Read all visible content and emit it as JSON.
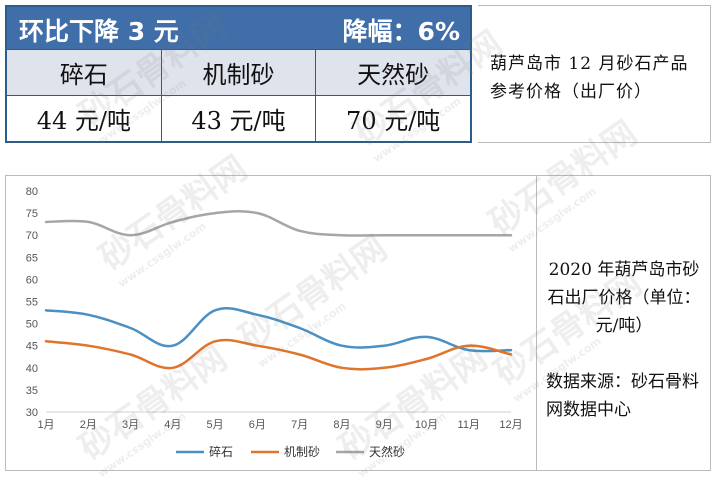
{
  "table": {
    "header_left": "环比下降 3 元",
    "header_right": "降幅：6%",
    "columns": [
      "碎石",
      "机制砂",
      "天然砂"
    ],
    "prices": [
      "44 元/吨",
      "43 元/吨",
      "70 元/吨"
    ]
  },
  "title_box": "葫芦岛市 12 月砂石产品参考价格（出厂价）",
  "side": {
    "chart_title": "2020 年葫芦岛市砂石出厂价格（单位：元/吨）",
    "source": "数据来源：砂石骨料网数据中心"
  },
  "watermark": {
    "text": "砂石骨料网",
    "url": "www.cssglw.com"
  },
  "colors": {
    "header_bg": "#3f6ea8",
    "row_head_bg": "#dfe3ec",
    "series_1": "#4a90c4",
    "series_2": "#e0742a",
    "series_3": "#a6a6a6"
  },
  "chart_data": {
    "type": "line",
    "categories": [
      "1月",
      "2月",
      "3月",
      "4月",
      "5月",
      "6月",
      "7月",
      "8月",
      "9月",
      "10月",
      "11月",
      "12月"
    ],
    "ylim": [
      30,
      80
    ],
    "yticks": [
      30,
      35,
      40,
      45,
      50,
      55,
      60,
      65,
      70,
      75,
      80
    ],
    "grid": false,
    "legend_position": "bottom",
    "series": [
      {
        "name": "碎石",
        "values": [
          53,
          52,
          49,
          45,
          53,
          52,
          49,
          45,
          45,
          47,
          44,
          44
        ]
      },
      {
        "name": "机制砂",
        "values": [
          46,
          45,
          43,
          40,
          46,
          45,
          43,
          40,
          40,
          42,
          45,
          43
        ]
      },
      {
        "name": "天然砂",
        "values": [
          73,
          73,
          70,
          73,
          75,
          75,
          71,
          70,
          70,
          70,
          70,
          70
        ]
      }
    ]
  }
}
